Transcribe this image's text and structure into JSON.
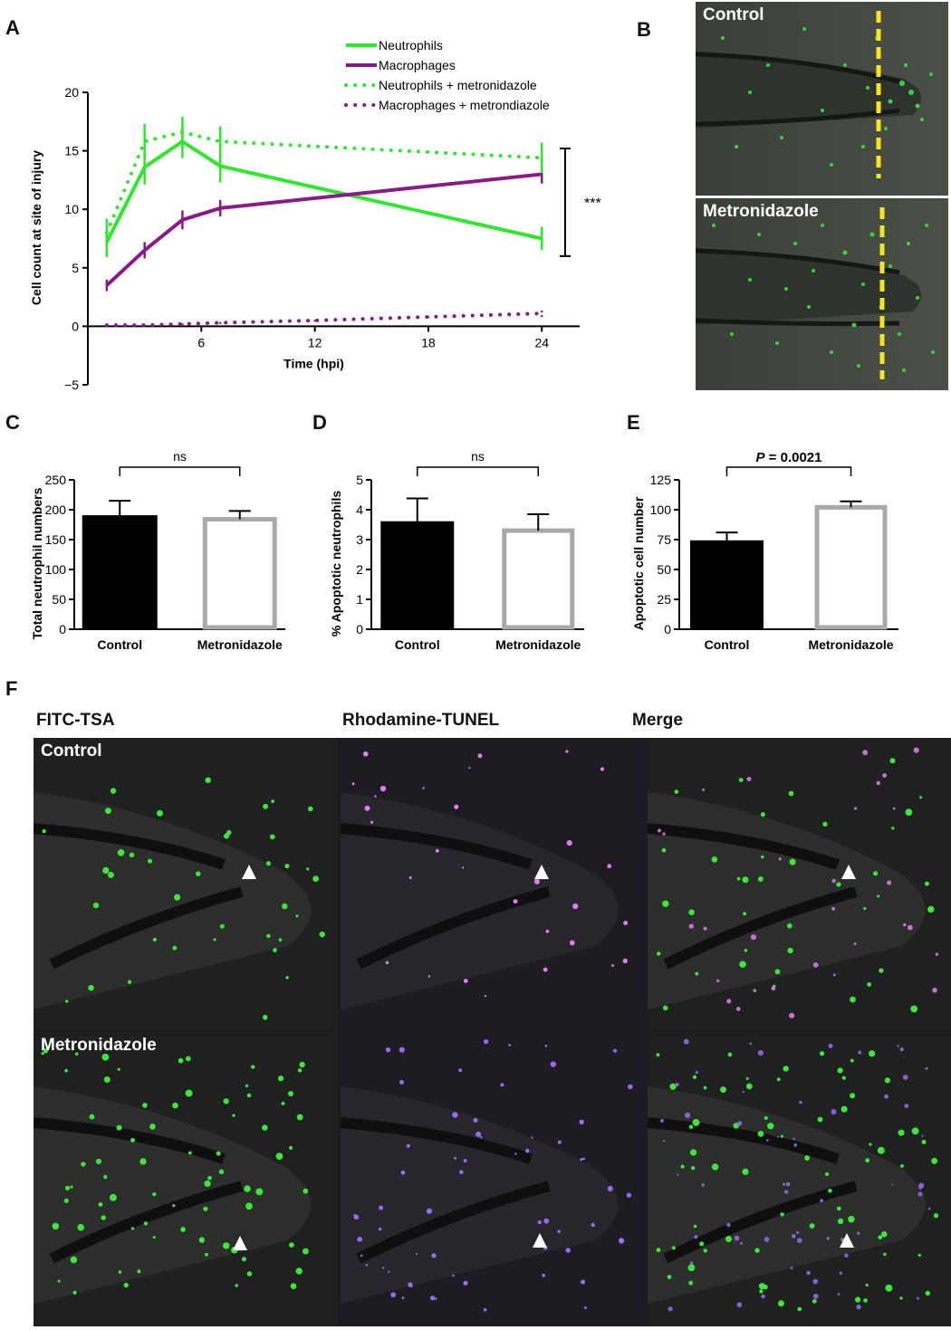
{
  "panel_letters": [
    "A",
    "B",
    "C",
    "D",
    "E",
    "F"
  ],
  "chart_data": [
    {
      "id": "A",
      "type": "line",
      "xlabel": "Time (hpi)",
      "ylabel": "Cell count at site of injury",
      "xlim": [
        0,
        26
      ],
      "ylim": [
        -5,
        20
      ],
      "xticks": [
        "6",
        "12",
        "18",
        "24"
      ],
      "yticks": [
        "20",
        "15",
        "10",
        "5",
        "0",
        "−5"
      ],
      "significance": "***",
      "series": [
        {
          "name": "Neutrophils",
          "style": "solid",
          "color": "#2ee82e",
          "x": [
            1,
            3,
            5,
            7,
            24
          ],
          "y": [
            7.2,
            13.6,
            15.8,
            13.7,
            7.5
          ],
          "err": [
            1.3,
            1.5,
            1.4,
            1.4,
            1.0
          ]
        },
        {
          "name": "Macrophages",
          "style": "solid",
          "color": "#8a1a8a",
          "x": [
            1,
            3,
            5,
            7,
            24
          ],
          "y": [
            3.5,
            6.5,
            9.1,
            10.1,
            13.0
          ],
          "err": [
            0.5,
            0.7,
            0.8,
            0.7,
            0.8
          ]
        },
        {
          "name": "Neutrophils + metronidazole",
          "style": "dotted",
          "color": "#2ee82e",
          "x": [
            1,
            3,
            5,
            7,
            24
          ],
          "y": [
            8.0,
            15.8,
            16.6,
            15.8,
            14.4
          ],
          "err": [
            1.2,
            1.5,
            1.3,
            1.3,
            1.3
          ]
        },
        {
          "name": "Macrophages + metrondiazole",
          "style": "dotted",
          "color": "#8a1a8a",
          "x": [
            1,
            3,
            5,
            7,
            12,
            18,
            24
          ],
          "y": [
            0.1,
            0.1,
            0.2,
            0.3,
            0.5,
            0.8,
            1.1
          ],
          "err": [
            0.1,
            0.1,
            0.1,
            0.1,
            0.1,
            0.1,
            0.3
          ]
        }
      ]
    },
    {
      "id": "C",
      "type": "bar",
      "ylabel": "Total neutrophil numbers",
      "ylim": [
        0,
        250
      ],
      "yticks": [
        "250",
        "200",
        "150",
        "100",
        "50",
        "0"
      ],
      "categories": [
        "Control",
        "Metronidazole"
      ],
      "values": [
        190,
        184
      ],
      "err": [
        25,
        14
      ],
      "fills": [
        "#000000",
        "#ffffff"
      ],
      "significance": "ns"
    },
    {
      "id": "D",
      "type": "bar",
      "ylabel": "% Apoptotic neutrophils",
      "ylim": [
        0,
        5
      ],
      "yticks": [
        "5",
        "4",
        "3",
        "2",
        "1",
        "0"
      ],
      "categories": [
        "Control",
        "Metronidazole"
      ],
      "values": [
        3.6,
        3.3
      ],
      "err": [
        0.78,
        0.55
      ],
      "fills": [
        "#000000",
        "#ffffff"
      ],
      "significance": "ns"
    },
    {
      "id": "E",
      "type": "bar",
      "ylabel": "Apoptotic cell number",
      "ylim": [
        0,
        125
      ],
      "yticks": [
        "125",
        "100",
        "75",
        "50",
        "25",
        "0"
      ],
      "categories": [
        "Control",
        "Metronidazole"
      ],
      "values": [
        74,
        102
      ],
      "err": [
        7,
        5
      ],
      "fills": [
        "#000000",
        "#ffffff"
      ],
      "significance_p": "P",
      "significance_rest": " = 0.0021"
    }
  ],
  "panel_b": {
    "top_label": "Control",
    "bottom_label": "Metronidazole",
    "line_color": "#f5e61b"
  },
  "panel_f": {
    "columns": [
      "FITC-TSA",
      "Rhodamine-TUNEL",
      "Merge"
    ],
    "rows": [
      "Control",
      "Metronidazole"
    ]
  },
  "colors": {
    "neutrophil": "#2ee82e",
    "macrophage": "#8a1a8a",
    "tunel": "#d070ff",
    "bar_outline_grey": "#a9a9a9",
    "marker": "#f5e61b"
  }
}
